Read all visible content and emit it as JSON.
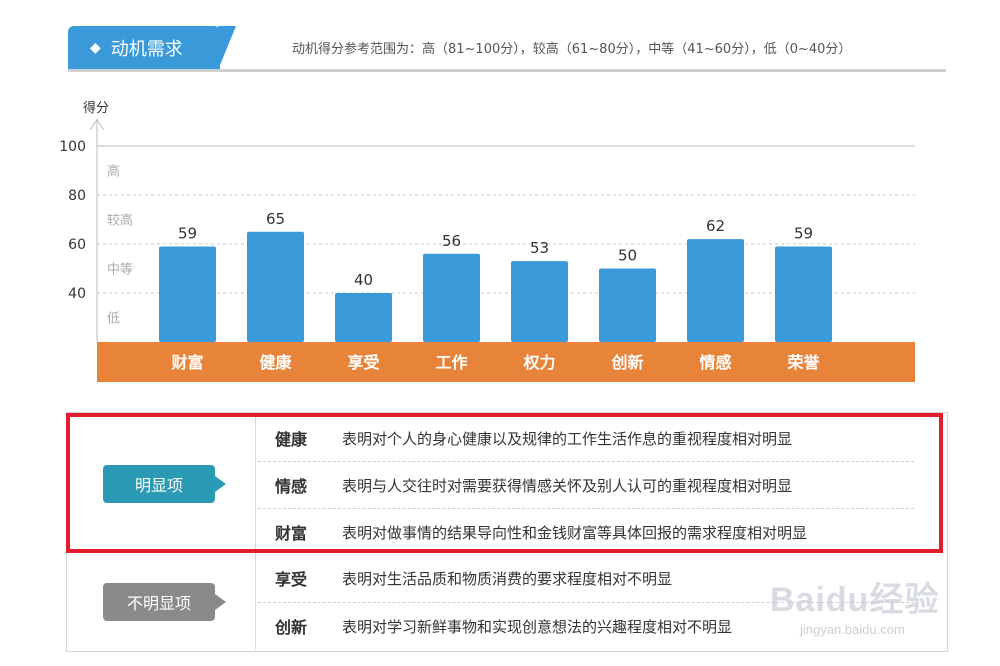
{
  "header": {
    "tab_label": "动机需求",
    "note": "动机得分参考范围为：高（81~100分），较高（61~80分），中等（41~60分），低（0~40分）"
  },
  "chart_data": {
    "type": "bar",
    "ylabel": "得分",
    "ylim": [
      20,
      100
    ],
    "yticks": [
      40,
      60,
      80,
      100
    ],
    "bands": [
      "高",
      "较高",
      "中等",
      "低"
    ],
    "categories": [
      "财富",
      "健康",
      "享受",
      "工作",
      "权力",
      "创新",
      "情感",
      "荣誉"
    ],
    "values": [
      59,
      65,
      40,
      56,
      53,
      50,
      62,
      59
    ],
    "bar_color": "#3a9ad9",
    "category_band_color": "#e8833a"
  },
  "strong": {
    "label": "明显项",
    "rows": [
      {
        "name": "健康",
        "desc": "表明对个人的身心健康以及规律的工作生活作息的重视程度相对明显"
      },
      {
        "name": "情感",
        "desc": "表明与人交往时对需要获得情感关怀及别人认可的重视程度相对明显"
      },
      {
        "name": "财富",
        "desc": "表明对做事情的结果导向性和金钱财富等具体回报的需求程度相对明显"
      }
    ]
  },
  "weak": {
    "label": "不明显项",
    "rows": [
      {
        "name": "享受",
        "desc": "表明对生活品质和物质消费的要求程度相对不明显"
      },
      {
        "name": "创新",
        "desc": "表明对学习新鲜事物和实现创意想法的兴趣程度相对不明显"
      }
    ]
  },
  "watermark": {
    "main": "Baidu经验",
    "sub": "jingyan.baidu.com"
  }
}
